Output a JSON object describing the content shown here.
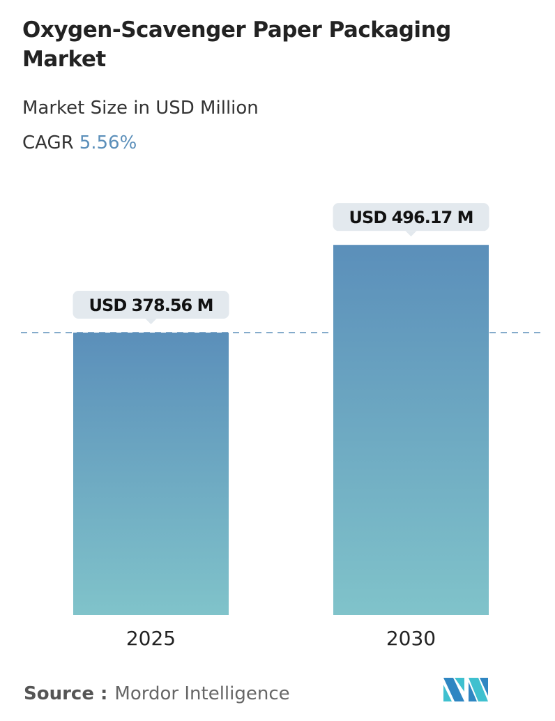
{
  "title": "Oxygen-Scavenger Paper Packaging Market",
  "subtitle": "Market Size in USD Million",
  "cagr_label": "CAGR",
  "cagr_value": "5.56%",
  "source_label": "Source :",
  "source_value": "Mordor Intelligence",
  "colors": {
    "bar_top": "#5b8fba",
    "bar_bottom": "#80c3ca",
    "accent": "#5b8fba"
  },
  "chart_data": {
    "type": "bar",
    "categories": [
      "2025",
      "2030"
    ],
    "values": [
      378.56,
      496.17
    ],
    "data_labels": [
      "USD 378.56 M",
      "USD 496.17 M"
    ],
    "ylim": [
      0,
      500
    ],
    "grid": false,
    "reference_line": "dashed at 2025 value"
  }
}
